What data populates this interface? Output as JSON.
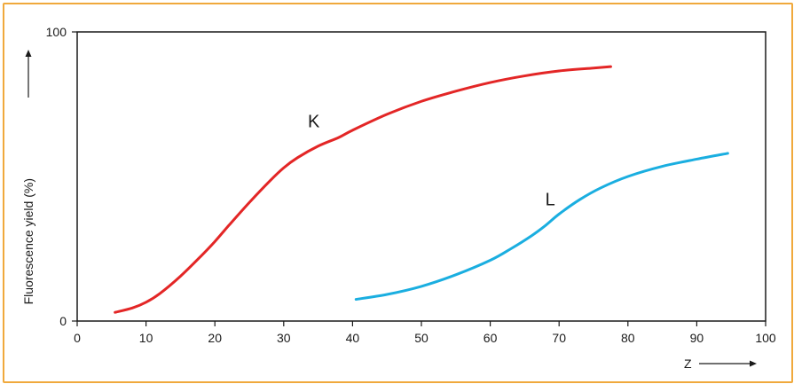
{
  "chart_data": {
    "type": "line",
    "title": "",
    "xlabel": "Z",
    "ylabel": "Fluorescence yield (%)",
    "xlim": [
      0,
      100
    ],
    "ylim": [
      0,
      100
    ],
    "x_ticks": [
      "0",
      "10",
      "20",
      "30",
      "40",
      "50",
      "60",
      "70",
      "80",
      "90",
      "100"
    ],
    "y_ticks": [
      "0",
      "100"
    ],
    "grid": false,
    "series": [
      {
        "name": "K",
        "color": "#e32626",
        "x": [
          5.5,
          8,
          10,
          12,
          15,
          18,
          20,
          22,
          25,
          28,
          30,
          32,
          35,
          38,
          40,
          45,
          50,
          55,
          60,
          65,
          70,
          75,
          77.5
        ],
        "y": [
          3,
          4.5,
          6.5,
          9.5,
          15.5,
          22.5,
          27.5,
          33,
          41,
          48.5,
          53,
          56.5,
          60.5,
          63.5,
          66,
          71.5,
          76,
          79.5,
          82.5,
          84.8,
          86.5,
          87.5,
          88
        ]
      },
      {
        "name": "L",
        "color": "#1aaee0",
        "x": [
          40.5,
          45,
          50,
          55,
          60,
          63,
          66,
          68,
          70,
          73,
          76,
          80,
          85,
          90,
          94.5
        ],
        "y": [
          7.5,
          9.2,
          12,
          16,
          21,
          25,
          29.5,
          33,
          37,
          42,
          46,
          50,
          53.5,
          56,
          58
        ]
      }
    ]
  }
}
